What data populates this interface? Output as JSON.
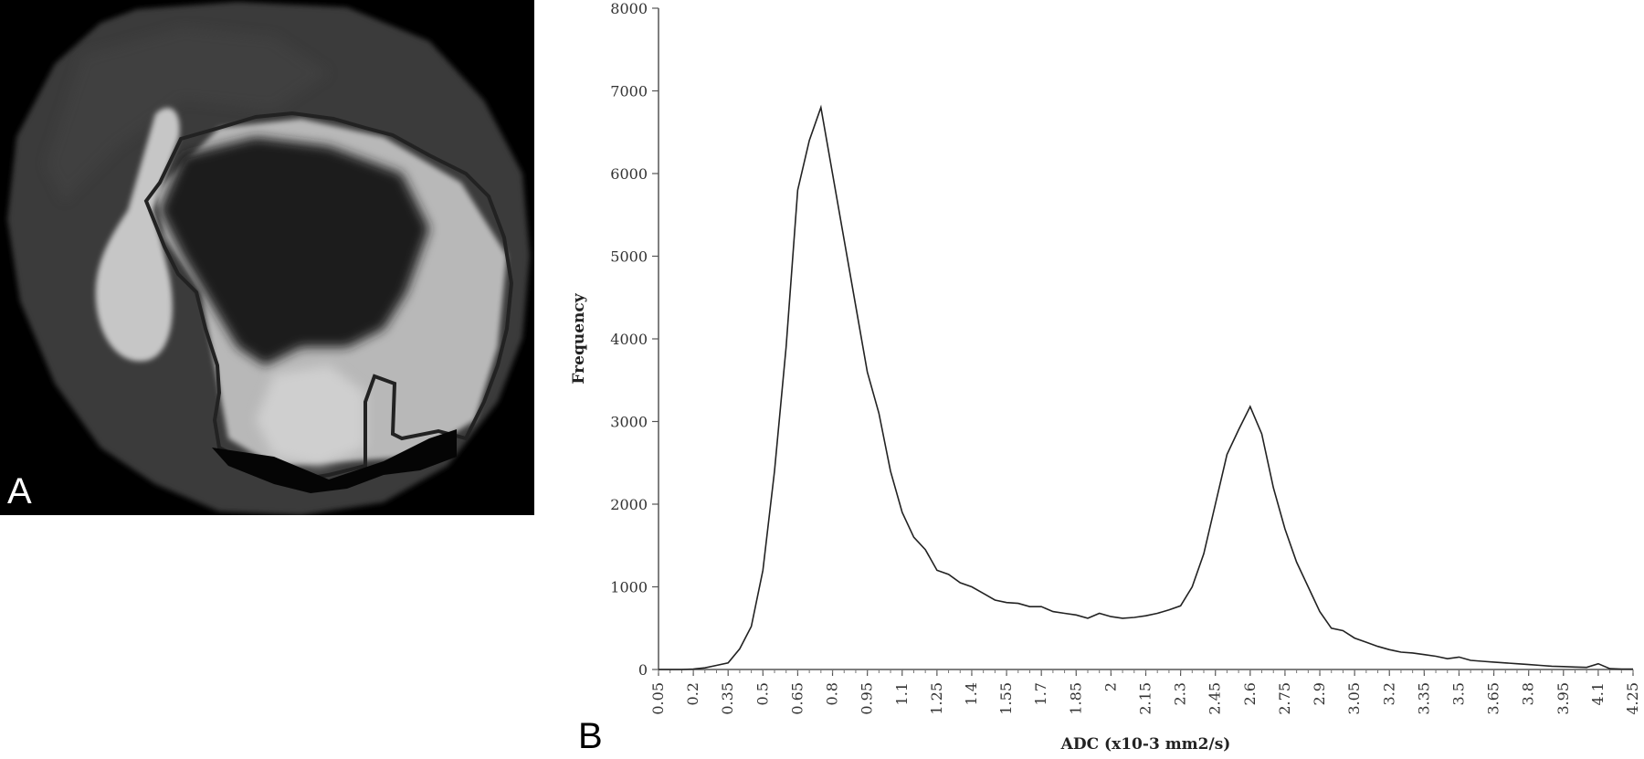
{
  "panels": {
    "a_label": "A",
    "b_label": "B"
  },
  "image_panel": {
    "description_icon": "mri-adc-map-image",
    "colors": {
      "background": "#000000",
      "outline": "#222222"
    }
  },
  "chart_data": {
    "type": "line",
    "title": "",
    "xlabel": "ADC (x10-3 mm2/s)",
    "ylabel": "Frequency",
    "ylim": [
      0,
      8000
    ],
    "yticks": [
      0,
      1000,
      2000,
      3000,
      4000,
      5000,
      6000,
      7000,
      8000
    ],
    "xtick_labels": [
      "0.05",
      "0.2",
      "0.35",
      "0.5",
      "0.65",
      "0.8",
      "0.95",
      "1.1",
      "1.25",
      "1.4",
      "1.55",
      "1.7",
      "1.85",
      "2",
      "2.15",
      "2.3",
      "2.45",
      "2.6",
      "2.75",
      "2.9",
      "3.05",
      "3.2",
      "3.35",
      "3.5",
      "3.65",
      "3.8",
      "3.95",
      "4.1",
      "4.25"
    ],
    "x": [
      0.05,
      0.1,
      0.15,
      0.2,
      0.25,
      0.3,
      0.35,
      0.4,
      0.45,
      0.5,
      0.55,
      0.6,
      0.65,
      0.7,
      0.75,
      0.8,
      0.85,
      0.9,
      0.95,
      1.0,
      1.05,
      1.1,
      1.15,
      1.2,
      1.25,
      1.3,
      1.35,
      1.4,
      1.45,
      1.5,
      1.55,
      1.6,
      1.65,
      1.7,
      1.75,
      1.8,
      1.85,
      1.9,
      1.95,
      2.0,
      2.05,
      2.1,
      2.15,
      2.2,
      2.25,
      2.3,
      2.35,
      2.4,
      2.45,
      2.5,
      2.55,
      2.6,
      2.65,
      2.7,
      2.75,
      2.8,
      2.85,
      2.9,
      2.95,
      3.0,
      3.05,
      3.1,
      3.15,
      3.2,
      3.25,
      3.3,
      3.35,
      3.4,
      3.45,
      3.5,
      3.55,
      3.6,
      3.65,
      3.7,
      3.75,
      3.8,
      3.85,
      3.9,
      3.95,
      4.0,
      4.05,
      4.1,
      4.15,
      4.2,
      4.25
    ],
    "series": [
      {
        "values": [
          0,
          0,
          0,
          5,
          20,
          50,
          80,
          250,
          520,
          1200,
          2400,
          3900,
          5800,
          6400,
          6800,
          6000,
          5200,
          4400,
          3600,
          3100,
          2400,
          1900,
          1600,
          1450,
          1200,
          1150,
          1050,
          1000,
          920,
          840,
          810,
          800,
          760,
          760,
          700,
          680,
          660,
          620,
          680,
          640,
          620,
          630,
          650,
          680,
          720,
          770,
          1000,
          1400,
          2000,
          2600,
          2900,
          3180,
          2850,
          2200,
          1700,
          1300,
          1000,
          700,
          500,
          470,
          380,
          330,
          280,
          240,
          210,
          200,
          180,
          160,
          130,
          150,
          110,
          100,
          90,
          80,
          70,
          60,
          50,
          40,
          35,
          30,
          25,
          70,
          10,
          5,
          5
        ],
        "color": "#222222"
      }
    ],
    "grid": false,
    "legend": "none"
  }
}
